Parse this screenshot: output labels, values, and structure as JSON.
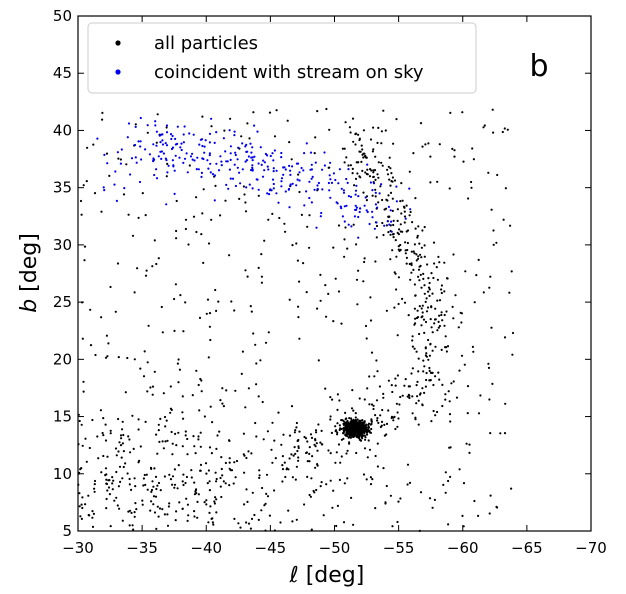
{
  "chart_data": {
    "type": "scatter",
    "panel_label": "b",
    "xlabel": "ℓ [deg]",
    "ylabel": "b [deg]",
    "xlim": [
      -30,
      -70
    ],
    "ylim": [
      5,
      50
    ],
    "x_inverted": true,
    "xticks": [
      -30,
      -35,
      -40,
      -45,
      -50,
      -55,
      -60,
      -65,
      -70
    ],
    "xtick_labels": [
      "−30",
      "−35",
      "−40",
      "−45",
      "−50",
      "−55",
      "−60",
      "−65",
      "−70"
    ],
    "yticks": [
      5,
      10,
      15,
      20,
      25,
      30,
      35,
      40,
      45,
      50
    ],
    "ytick_labels": [
      "5",
      "10",
      "15",
      "20",
      "25",
      "30",
      "35",
      "40",
      "45",
      "50"
    ],
    "grid": false,
    "legend_position": "upper-left",
    "series": [
      {
        "name": "all particles",
        "color": "#000000",
        "marker": "dot",
        "components": [
          {
            "kind": "core",
            "center": [
              -51.6,
              13.9
            ],
            "spread": [
              0.5,
              0.4
            ],
            "count": 500
          },
          {
            "kind": "stream-arc",
            "path": [
              [
                -47,
                12.2
              ],
              [
                -50,
                13.5
              ],
              [
                -52,
                14.5
              ],
              [
                -55,
                16
              ],
              [
                -57,
                18.5
              ],
              [
                -58,
                22
              ],
              [
                -57.5,
                26
              ],
              [
                -56,
                30
              ],
              [
                -54,
                34
              ],
              [
                -52,
                38
              ],
              [
                -51.5,
                40
              ]
            ],
            "width": 1.0,
            "count": 420
          },
          {
            "kind": "lower-cloud",
            "center": [
              -37,
              9.5
            ],
            "spread": [
              7,
              3.2
            ],
            "count": 380
          },
          {
            "kind": "diffuse-halo",
            "x_range": [
              -30,
              -64
            ],
            "y_range": [
              5,
              42
            ],
            "count": 520
          }
        ]
      },
      {
        "name": "coincident with stream on sky",
        "color": "#0000ee",
        "marker": "dot",
        "components": [
          {
            "kind": "stream-band",
            "path": [
              [
                -34,
                38.5
              ],
              [
                -38,
                38.2
              ],
              [
                -42,
                37.5
              ],
              [
                -45,
                36.5
              ],
              [
                -48,
                35.5
              ],
              [
                -51,
                34.5
              ],
              [
                -53,
                33.5
              ],
              [
                -54,
                32.5
              ]
            ],
            "width": 1.2,
            "count": 300
          },
          {
            "kind": "sparse",
            "x_range": [
              -31,
              -44
            ],
            "y_range": [
              33.5,
              40.5
            ],
            "count": 35
          }
        ]
      }
    ]
  }
}
